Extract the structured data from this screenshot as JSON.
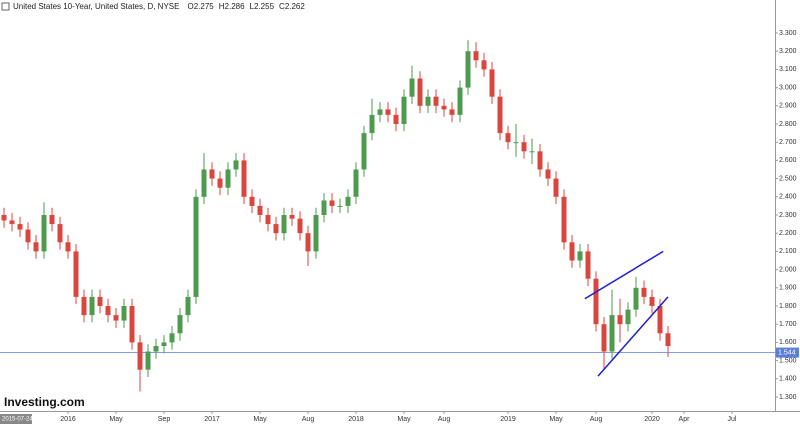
{
  "chart_data": {
    "type": "candlestick",
    "legend": {
      "title": "United States 10-Year, United States, D, NYSE",
      "ohlc": [
        {
          "label": "O",
          "value": 2.275
        },
        {
          "label": "H",
          "value": 2.286
        },
        {
          "label": "L",
          "value": 2.255
        },
        {
          "label": "C",
          "value": 2.262
        }
      ]
    },
    "watermark": "Investing.com",
    "cursor_date": "2015-07-24",
    "categories": [
      null,
      null,
      null,
      null,
      null,
      null,
      null,
      null,
      "2016",
      null,
      null,
      null,
      null,
      null,
      "May",
      null,
      null,
      null,
      null,
      null,
      "Sep",
      null,
      null,
      null,
      null,
      null,
      "2017",
      null,
      null,
      null,
      null,
      null,
      "May",
      null,
      null,
      null,
      null,
      null,
      "Aug",
      null,
      null,
      null,
      null,
      null,
      "2018",
      null,
      null,
      null,
      null,
      null,
      "May",
      null,
      null,
      null,
      null,
      "Aug",
      null,
      null,
      null,
      null,
      null,
      null,
      null,
      "2019",
      null,
      null,
      null,
      null,
      null,
      "May",
      null,
      null,
      null,
      null,
      "Aug",
      null,
      null,
      null,
      null,
      null,
      null,
      "2020",
      null,
      null,
      null,
      "Apr",
      null,
      null,
      null,
      null,
      null,
      "Jul"
    ],
    "open": [
      2.3,
      2.27,
      2.25,
      2.22,
      2.15,
      2.1,
      2.3,
      2.25,
      2.15,
      2.1,
      1.85,
      1.75,
      1.85,
      1.8,
      1.75,
      1.72,
      1.8,
      1.6,
      1.45,
      1.55,
      1.58,
      1.6,
      1.65,
      1.75,
      1.85,
      2.4,
      2.55,
      2.5,
      2.45,
      2.55,
      2.6,
      2.4,
      2.35,
      2.3,
      2.25,
      2.2,
      2.3,
      2.28,
      2.2,
      2.1,
      2.3,
      2.38,
      2.35,
      2.35,
      2.4,
      2.55,
      2.75,
      2.85,
      2.88,
      2.85,
      2.8,
      2.95,
      3.05,
      2.9,
      2.95,
      2.9,
      2.88,
      2.85,
      3.0,
      3.2,
      3.15,
      3.1,
      2.95,
      2.75,
      2.7,
      2.7,
      2.65,
      2.65,
      2.55,
      2.5,
      2.4,
      2.15,
      2.05,
      2.1,
      1.95,
      1.7,
      1.55,
      1.75,
      1.7,
      1.78,
      1.9,
      1.85,
      1.8,
      1.65,
      null,
      null,
      null,
      null,
      null,
      null,
      null,
      null
    ],
    "high": [
      2.34,
      2.31,
      2.29,
      2.26,
      2.19,
      2.37,
      2.34,
      2.29,
      2.19,
      2.14,
      1.89,
      1.89,
      1.89,
      1.84,
      1.79,
      1.84,
      1.84,
      1.64,
      1.59,
      1.62,
      1.64,
      1.69,
      1.79,
      1.89,
      2.44,
      2.64,
      2.59,
      2.54,
      2.59,
      2.64,
      2.64,
      2.44,
      2.39,
      2.34,
      2.29,
      2.34,
      2.34,
      2.32,
      2.24,
      2.34,
      2.42,
      2.42,
      2.39,
      2.44,
      2.59,
      2.79,
      2.94,
      2.92,
      2.92,
      2.89,
      2.99,
      3.12,
      3.09,
      2.99,
      2.99,
      2.94,
      2.92,
      3.04,
      3.26,
      3.25,
      3.19,
      3.14,
      2.99,
      2.79,
      2.8,
      2.74,
      2.72,
      2.69,
      2.59,
      2.54,
      2.44,
      2.19,
      2.14,
      2.14,
      1.99,
      1.74,
      1.89,
      1.84,
      1.82,
      1.96,
      1.94,
      1.89,
      1.84,
      1.69,
      null,
      null,
      null,
      null,
      null,
      null,
      null,
      null
    ],
    "low": [
      2.23,
      2.21,
      2.18,
      2.11,
      2.06,
      2.06,
      2.21,
      2.11,
      2.06,
      1.81,
      1.71,
      1.71,
      1.76,
      1.71,
      1.68,
      1.68,
      1.56,
      1.33,
      1.41,
      1.51,
      1.54,
      1.56,
      1.61,
      1.71,
      1.81,
      2.36,
      2.46,
      2.41,
      2.41,
      2.51,
      2.36,
      2.31,
      2.26,
      2.21,
      2.16,
      2.16,
      2.24,
      2.16,
      2.02,
      2.06,
      2.26,
      2.31,
      2.31,
      2.31,
      2.36,
      2.51,
      2.71,
      2.81,
      2.81,
      2.76,
      2.76,
      2.91,
      2.86,
      2.86,
      2.86,
      2.84,
      2.81,
      2.81,
      2.96,
      3.11,
      3.06,
      2.91,
      2.71,
      2.66,
      2.62,
      2.61,
      2.58,
      2.51,
      2.46,
      2.36,
      2.11,
      2.01,
      2.01,
      1.91,
      1.66,
      1.45,
      1.51,
      1.6,
      1.66,
      1.74,
      1.81,
      1.76,
      1.61,
      1.52,
      null,
      null,
      null,
      null,
      null,
      null,
      null,
      null
    ],
    "close": [
      2.27,
      2.25,
      2.22,
      2.15,
      2.1,
      2.3,
      2.25,
      2.15,
      2.1,
      1.85,
      1.75,
      1.85,
      1.8,
      1.75,
      1.72,
      1.8,
      1.6,
      1.45,
      1.55,
      1.58,
      1.6,
      1.65,
      1.75,
      1.85,
      2.4,
      2.55,
      2.5,
      2.45,
      2.55,
      2.6,
      2.4,
      2.35,
      2.3,
      2.25,
      2.2,
      2.3,
      2.28,
      2.2,
      2.1,
      2.3,
      2.38,
      2.35,
      2.35,
      2.4,
      2.55,
      2.75,
      2.85,
      2.88,
      2.85,
      2.8,
      2.95,
      3.05,
      2.9,
      2.95,
      2.9,
      2.88,
      2.85,
      3.0,
      3.2,
      3.15,
      3.1,
      2.95,
      2.75,
      2.7,
      2.7,
      2.65,
      2.65,
      2.55,
      2.5,
      2.4,
      2.15,
      2.05,
      2.1,
      1.95,
      1.7,
      1.55,
      1.75,
      1.7,
      1.78,
      1.9,
      1.85,
      1.8,
      1.65,
      1.58,
      null,
      null,
      null,
      null,
      null,
      null,
      null,
      null
    ],
    "up_color": "#4e9a4e",
    "down_color": "#d9463e",
    "price_line": 1.544,
    "price_line_color": "#5b7fd6",
    "trendlines": [
      {
        "x": [
          72.6,
          82.4
        ],
        "y": [
          1.84,
          2.1
        ]
      },
      {
        "x": [
          74.25,
          83
        ],
        "y": [
          1.415,
          1.85
        ]
      }
    ],
    "trendline_color": "#1c1cd9",
    "ylim": [
      1.3,
      3.3
    ],
    "yticks": [
      {
        "value": 1.3,
        "label": "1.300"
      },
      {
        "value": 1.4,
        "label": "1.400"
      },
      {
        "value": 1.5,
        "label": "1.500"
      },
      {
        "value": 1.6,
        "label": "1.600"
      },
      {
        "value": 1.7,
        "label": "1.700"
      },
      {
        "value": 1.8,
        "label": "1.800"
      },
      {
        "value": 1.9,
        "label": "1.900"
      },
      {
        "value": 2.0,
        "label": "2.000"
      },
      {
        "value": 2.1,
        "label": "2.100"
      },
      {
        "value": 2.2,
        "label": "2.200"
      },
      {
        "value": 2.3,
        "label": "2.300"
      },
      {
        "value": 2.4,
        "label": "2.400"
      },
      {
        "value": 2.5,
        "label": "2.500"
      },
      {
        "value": 2.6,
        "label": "2.600"
      },
      {
        "value": 2.7,
        "label": "2.700"
      },
      {
        "value": 2.8,
        "label": "2.800"
      },
      {
        "value": 2.9,
        "label": "2.900"
      },
      {
        "value": 3.0,
        "label": "3.000"
      },
      {
        "value": 3.1,
        "label": "3.100"
      },
      {
        "value": 3.2,
        "label": "3.200"
      },
      {
        "value": 3.3,
        "label": "3.300"
      }
    ]
  }
}
